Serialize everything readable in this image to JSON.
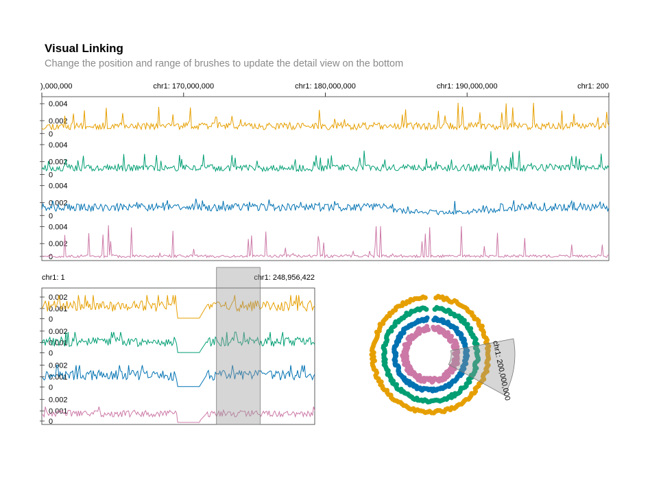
{
  "header": {
    "title": "Visual Linking",
    "subtitle": "Change the position and range of brushes to update the detail view on the bottom"
  },
  "colors": {
    "series": [
      "#E69F00",
      "#009E73",
      "#0072B2",
      "#CC79A7"
    ],
    "axis": "#333333",
    "brush": "#999999"
  },
  "chart_data": [
    {
      "type": "line",
      "name": "overview-tracks",
      "x_domain_bp": [
        160000000,
        200000000
      ],
      "x_tick_labels": [
        {
          "pos": 160000000,
          "label": "),000,000"
        },
        {
          "pos": 170000000,
          "label": "chr1: 170,000,000"
        },
        {
          "pos": 180000000,
          "label": "chr1: 180,000,000"
        },
        {
          "pos": 190000000,
          "label": "chr1: 190,000,000"
        },
        {
          "pos": 200000000,
          "label": "chr1: 200"
        }
      ],
      "y_ticks": [
        "0.004",
        "0.002",
        "0"
      ],
      "ylim": [
        0,
        0.0045
      ],
      "series": [
        {
          "color": "#E69F00",
          "seed": 11,
          "base": 0.00155,
          "spike": 0.0042
        },
        {
          "color": "#009E73",
          "seed": 23,
          "base": 0.00145,
          "spike": 0.0034
        },
        {
          "color": "#0072B2",
          "seed": 37,
          "base": 0.00165,
          "spike": 0.0026
        },
        {
          "color": "#CC79A7",
          "seed": 51,
          "base": 0.0006,
          "spike": 0.0044
        }
      ]
    },
    {
      "type": "line",
      "name": "detail-tracks",
      "x_labels": {
        "left": "chr1: 1",
        "right": "chr1: 248,956,422"
      },
      "y_ticks": [
        "0.002",
        "0.001",
        "0"
      ],
      "ylim": [
        0,
        0.0026
      ],
      "brush_range_fraction": [
        0.64,
        0.8
      ],
      "series": [
        {
          "color": "#E69F00",
          "seed": 71,
          "base": 0.00135
        },
        {
          "color": "#009E73",
          "seed": 83,
          "base": 0.0012
        },
        {
          "color": "#0072B2",
          "seed": 97,
          "base": 0.00125
        },
        {
          "color": "#CC79A7",
          "seed": 103,
          "base": 0.00085
        }
      ]
    },
    {
      "type": "scatter",
      "name": "circular-tracks",
      "gap_fraction": 0.03,
      "brush_label": "chr1: 200,000,000",
      "brush_range_fraction": [
        0.22,
        0.33
      ]
    }
  ]
}
